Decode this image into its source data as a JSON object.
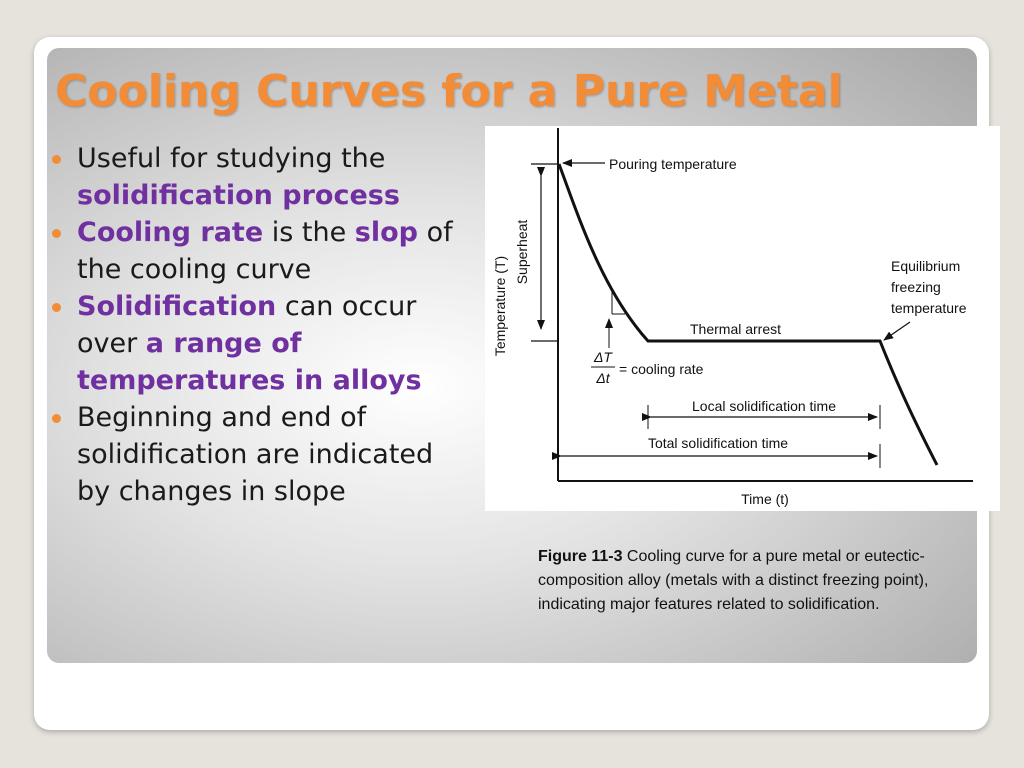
{
  "slide": {
    "title": "Cooling Curves for a Pure Metal",
    "bullets": [
      {
        "segments": [
          {
            "text": "Useful for studying the ",
            "emph": false
          },
          {
            "text": "solidification process",
            "emph": true
          }
        ]
      },
      {
        "segments": [
          {
            "text": "Cooling rate",
            "emph": true
          },
          {
            "text": " is the ",
            "emph": false
          },
          {
            "text": "slop",
            "emph": true
          },
          {
            "text": " of the cooling curve",
            "emph": false
          }
        ]
      },
      {
        "segments": [
          {
            "text": "Solidification",
            "emph": true
          },
          {
            "text": " can occur over ",
            "emph": false
          },
          {
            "text": "a range of temperatures in alloys",
            "emph": true
          }
        ]
      },
      {
        "segments": [
          {
            "text": "Beginning and end of solidification are indicated by changes in slope",
            "emph": false
          }
        ]
      }
    ]
  },
  "figure": {
    "y_axis_label": "Temperature (T)",
    "x_axis_label": "Time (t)",
    "superheat_label": "Superheat",
    "pouring_label": "Pouring temperature",
    "thermal_arrest_label": "Thermal arrest",
    "equilibrium_label_lines": [
      "Equilibrium",
      "freezing",
      "temperature"
    ],
    "cooling_rate_numerator": "ΔT",
    "cooling_rate_denominator": "Δt",
    "cooling_rate_label": "= cooling rate",
    "local_time_label": "Local solidification time",
    "total_time_label": "Total solidification time",
    "caption_label": "Figure 11-3",
    "caption_text": " Cooling curve for a pure metal or eutectic-composition alloy (metals with a distinct freezing point), indicating major features related to solidification."
  },
  "colors": {
    "accent": "#f28c36",
    "emphasis": "#7030a0"
  }
}
